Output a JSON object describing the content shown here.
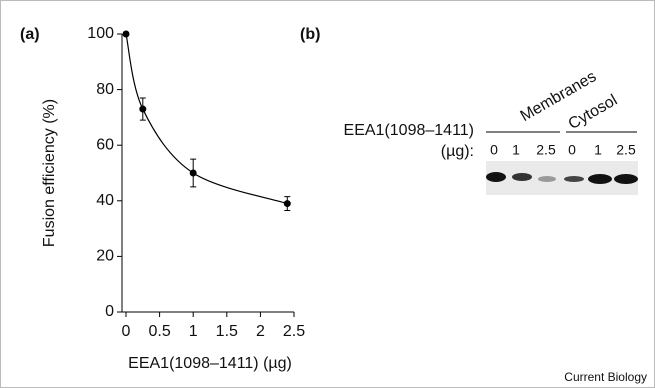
{
  "chart_data": {
    "type": "scatter",
    "panel_label": "(a)",
    "x_label": "EEA1(1098–1411) (µg)",
    "y_label": "Fusion efficiency (%)",
    "x": [
      0,
      0.25,
      1,
      2.4
    ],
    "values": [
      100,
      73,
      50,
      39
    ],
    "errors": [
      0,
      4,
      5,
      2.5
    ],
    "color": "#000000",
    "xlim": [
      0,
      2.5
    ],
    "ylim": [
      0,
      100
    ],
    "xticks": [
      0,
      0.5,
      1,
      1.5,
      2,
      2.5
    ],
    "yticks": [
      0,
      20,
      40,
      60,
      80,
      100
    ],
    "fit_line": true
  },
  "blot": {
    "panel_label": "(b)",
    "protein_label": "EEA1(1098–1411)",
    "unit_label": "(µg):",
    "groups": [
      {
        "name": "Membranes",
        "lanes": [
          "0",
          "1",
          "2.5"
        ]
      },
      {
        "name": "Cytosol",
        "lanes": [
          "0",
          "1",
          "2.5"
        ]
      }
    ]
  },
  "credit": "Current Biology"
}
